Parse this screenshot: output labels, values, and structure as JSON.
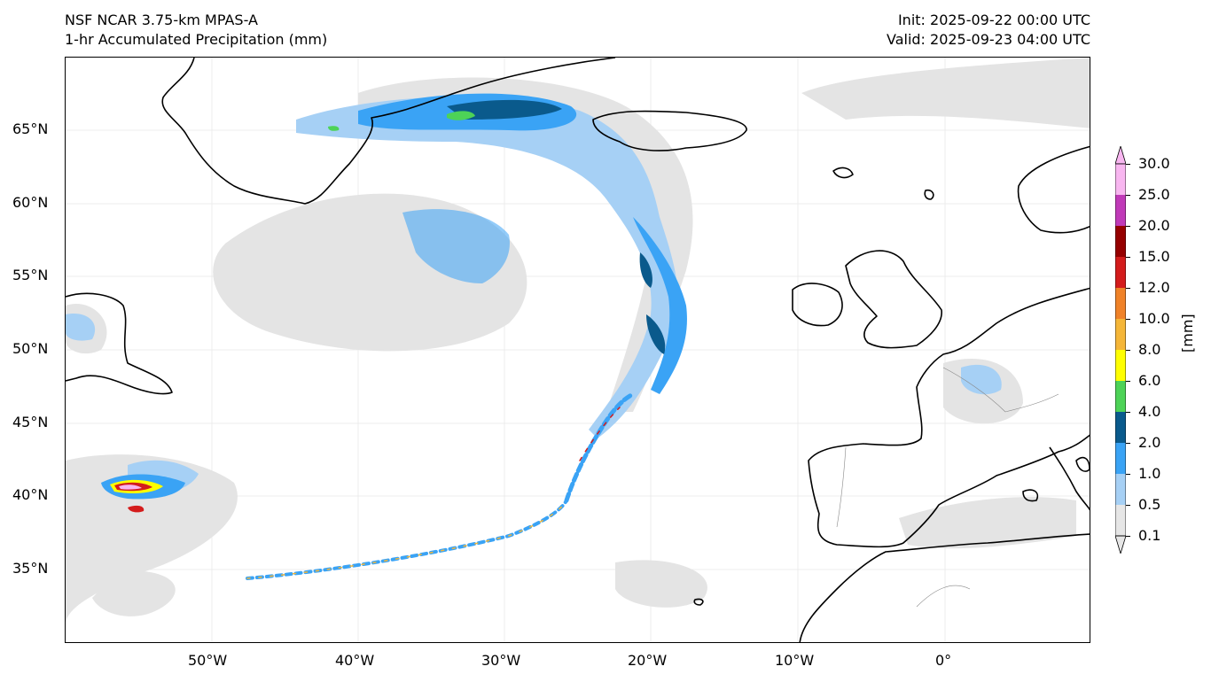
{
  "header": {
    "model": "NSF NCAR 3.75-km MPAS-A",
    "field": "1-hr Accumulated Precipitation (mm)",
    "init": "Init: 2025-09-22 00:00 UTC",
    "valid": "Valid: 2025-09-23 04:00 UTC"
  },
  "axes": {
    "lon_labels": [
      "50°W",
      "40°W",
      "30°W",
      "20°W",
      "10°W",
      "0°"
    ],
    "lat_labels": [
      "65°N",
      "60°N",
      "55°N",
      "50°N",
      "45°N",
      "40°N",
      "35°N"
    ]
  },
  "colorbar": {
    "unit": "[mm]",
    "levels": [
      "0.1",
      "0.5",
      "1.0",
      "2.0",
      "4.0",
      "6.0",
      "8.0",
      "10.0",
      "12.0",
      "15.0",
      "20.0",
      "25.0",
      "30.0"
    ],
    "colors": [
      "#e6e6e6",
      "#a6d0f5",
      "#3aa3f5",
      "#0a5a8c",
      "#4dd357",
      "#ffff00",
      "#f5b638",
      "#f08228",
      "#d41c1c",
      "#960000",
      "#c03ab8",
      "#f8b6f0"
    ]
  },
  "map": {
    "land_outline_color": "#000000",
    "gridline_color": "#e8e8e8"
  }
}
